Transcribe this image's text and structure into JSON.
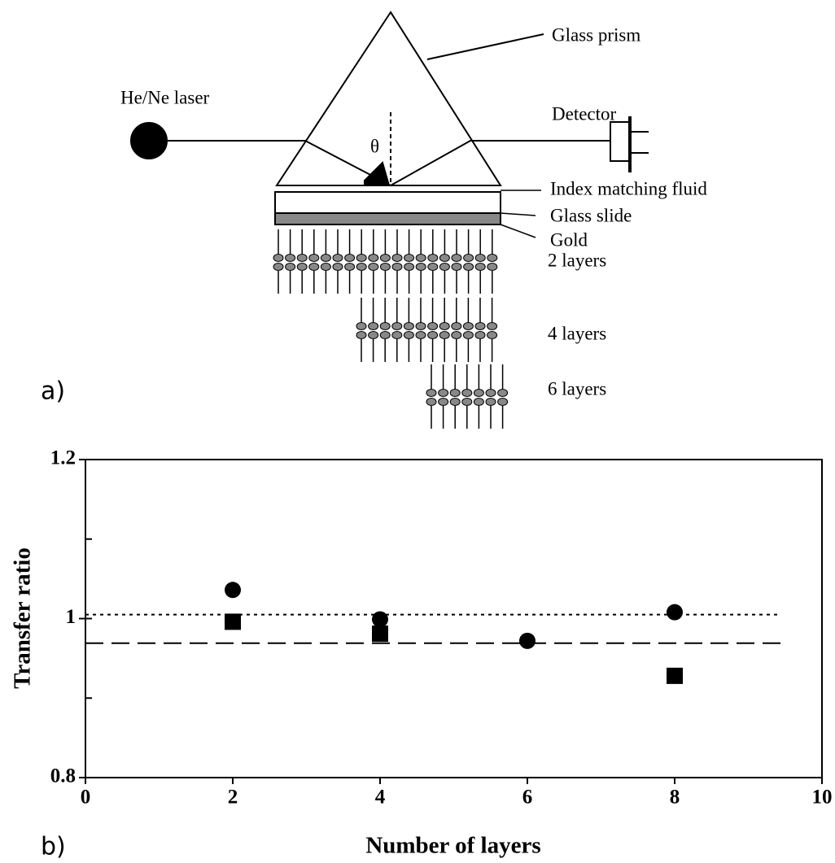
{
  "diagram": {
    "prism": "Glass prism",
    "laser": "He/Ne laser",
    "detector": "Detector",
    "angle": "θ",
    "fluid": "Index matching fluid",
    "slide": "Glass slide",
    "gold": "Gold",
    "layers": [
      "2 layers",
      "4 layers",
      "6 layers"
    ],
    "panel": "a)"
  },
  "chart_data": {
    "type": "scatter",
    "panel": "b)",
    "xlabel": "Number of layers",
    "ylabel": "Transfer ratio",
    "xlim": [
      0,
      10
    ],
    "xticks": [
      0,
      2,
      4,
      6,
      8,
      10
    ],
    "ylim": [
      0.8,
      1.2
    ],
    "yticks": [
      0.8,
      1,
      1.2
    ],
    "yminor_ticks": [
      0.9,
      1.1
    ],
    "series": [
      {
        "marker": "circle",
        "color": "#000000",
        "x": [
          2,
          4,
          6,
          8
        ],
        "values": [
          1.036,
          0.999,
          0.972,
          1.008
        ]
      },
      {
        "marker": "square",
        "color": "#000000",
        "x": [
          2,
          4,
          8
        ],
        "values": [
          0.996,
          0.981,
          0.928
        ]
      }
    ],
    "hlines": [
      {
        "y": 1.005,
        "style": "dotted",
        "x_end": 9.4
      },
      {
        "y": 0.969,
        "style": "dashed",
        "x_end": 9.5
      }
    ]
  }
}
